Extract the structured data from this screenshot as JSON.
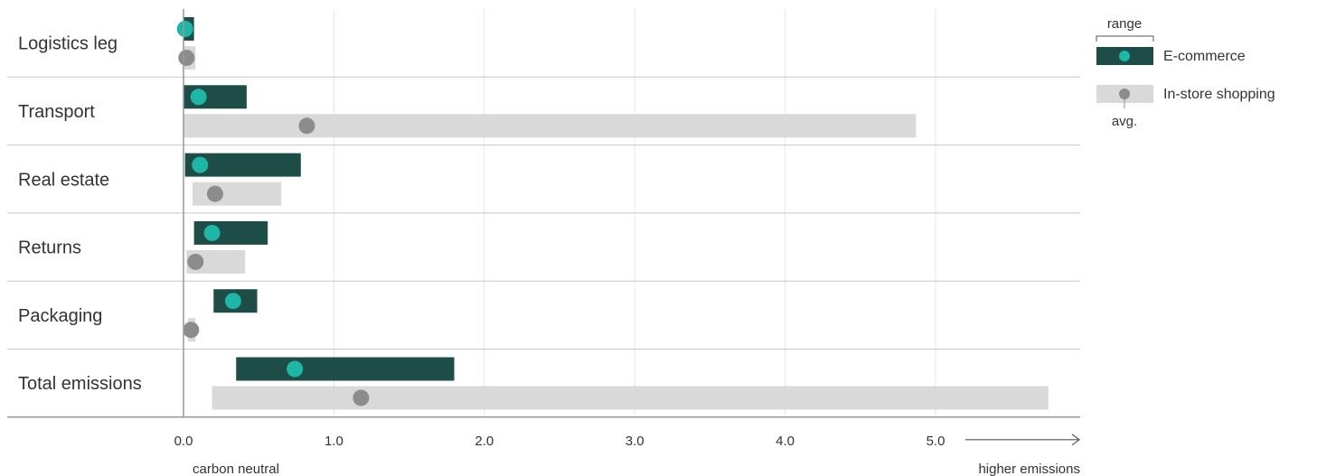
{
  "chart_data": {
    "type": "range-dot",
    "categories": [
      "Logistics leg",
      "Transport",
      "Real estate",
      "Returns",
      "Packaging",
      "Total emissions"
    ],
    "xlim": [
      0,
      5.8
    ],
    "x_ticks": [
      0,
      1,
      2,
      3,
      4,
      5
    ],
    "x_tick_labels": [
      "0.0",
      "1.0",
      "2.0",
      "3.0",
      "4.0",
      "5.0"
    ],
    "x_axis_left_label": "carbon neutral",
    "x_axis_right_label": "higher emissions",
    "grid": true,
    "legend_position": "top-right",
    "legend": {
      "range_label": "range",
      "avg_label": "avg."
    },
    "series": [
      {
        "name": "E-commerce",
        "bar_color": "#1e4d47",
        "bar_color_total": "#214f49",
        "dot_color": "#1fb5a7",
        "ranges": [
          [
            0.0,
            0.07
          ],
          [
            0.0,
            0.42
          ],
          [
            0.01,
            0.78
          ],
          [
            0.07,
            0.56
          ],
          [
            0.2,
            0.49
          ],
          [
            0.35,
            1.8
          ]
        ],
        "averages": [
          0.01,
          0.1,
          0.11,
          0.19,
          0.33,
          0.74
        ]
      },
      {
        "name": "In-store shopping",
        "bar_color": "#d9d9d9",
        "dot_color": "#8c8c8c",
        "ranges": [
          [
            0.0,
            0.08
          ],
          [
            0.0,
            4.87
          ],
          [
            0.06,
            0.65
          ],
          [
            0.02,
            0.41
          ],
          [
            0.03,
            0.08
          ],
          [
            0.19,
            5.75
          ]
        ],
        "averages": [
          0.02,
          0.82,
          0.21,
          0.08,
          0.05,
          1.18
        ]
      }
    ]
  }
}
